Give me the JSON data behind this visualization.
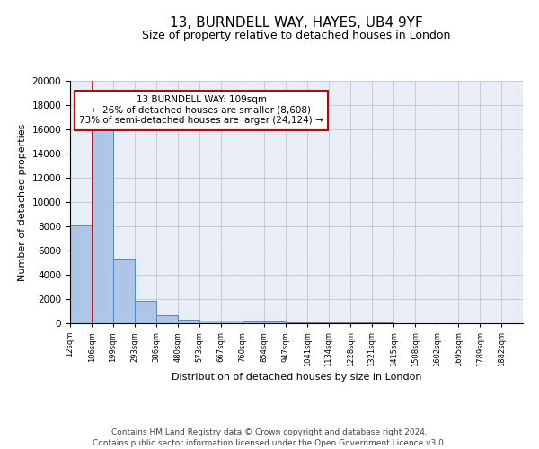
{
  "title": "13, BURNDELL WAY, HAYES, UB4 9YF",
  "subtitle": "Size of property relative to detached houses in London",
  "xlabel": "Distribution of detached houses by size in London",
  "ylabel": "Number of detached properties",
  "bar_edges": [
    12,
    106,
    199,
    293,
    386,
    480,
    573,
    667,
    760,
    854,
    947,
    1041,
    1134,
    1228,
    1321,
    1415,
    1508,
    1602,
    1695,
    1789,
    1882
  ],
  "bar_heights": [
    8100,
    16600,
    5300,
    1850,
    700,
    300,
    230,
    200,
    150,
    130,
    100,
    80,
    60,
    50,
    40,
    35,
    30,
    25,
    20,
    15
  ],
  "bar_color": "#adc6e8",
  "bar_edge_color": "#5588bb",
  "ylim": [
    0,
    20000
  ],
  "yticks": [
    0,
    2000,
    4000,
    6000,
    8000,
    10000,
    12000,
    14000,
    16000,
    18000,
    20000
  ],
  "grid_color": "#bbbbcc",
  "background_color": "#e8eef5",
  "property_line_x": 109,
  "property_line_color": "#cc0000",
  "annotation_text": "13 BURNDELL WAY: 109sqm\n← 26% of detached houses are smaller (8,608)\n73% of semi-detached houses are larger (24,124) →",
  "annotation_box_facecolor": "#ffffff",
  "annotation_box_edgecolor": "#cc0000",
  "footer_text": "Contains HM Land Registry data © Crown copyright and database right 2024.\nContains public sector information licensed under the Open Government Licence v3.0.",
  "title_fontsize": 11,
  "subtitle_fontsize": 9,
  "annotation_fontsize": 7.5,
  "footer_fontsize": 6.5,
  "ylabel_fontsize": 8,
  "xlabel_fontsize": 8,
  "tick_label_fontsize": 6,
  "ytick_fontsize": 7.5,
  "tick_labels": [
    "12sqm",
    "106sqm",
    "199sqm",
    "293sqm",
    "386sqm",
    "480sqm",
    "573sqm",
    "667sqm",
    "760sqm",
    "854sqm",
    "947sqm",
    "1041sqm",
    "1134sqm",
    "1228sqm",
    "1321sqm",
    "1415sqm",
    "1508sqm",
    "1602sqm",
    "1695sqm",
    "1789sqm",
    "1882sqm"
  ]
}
